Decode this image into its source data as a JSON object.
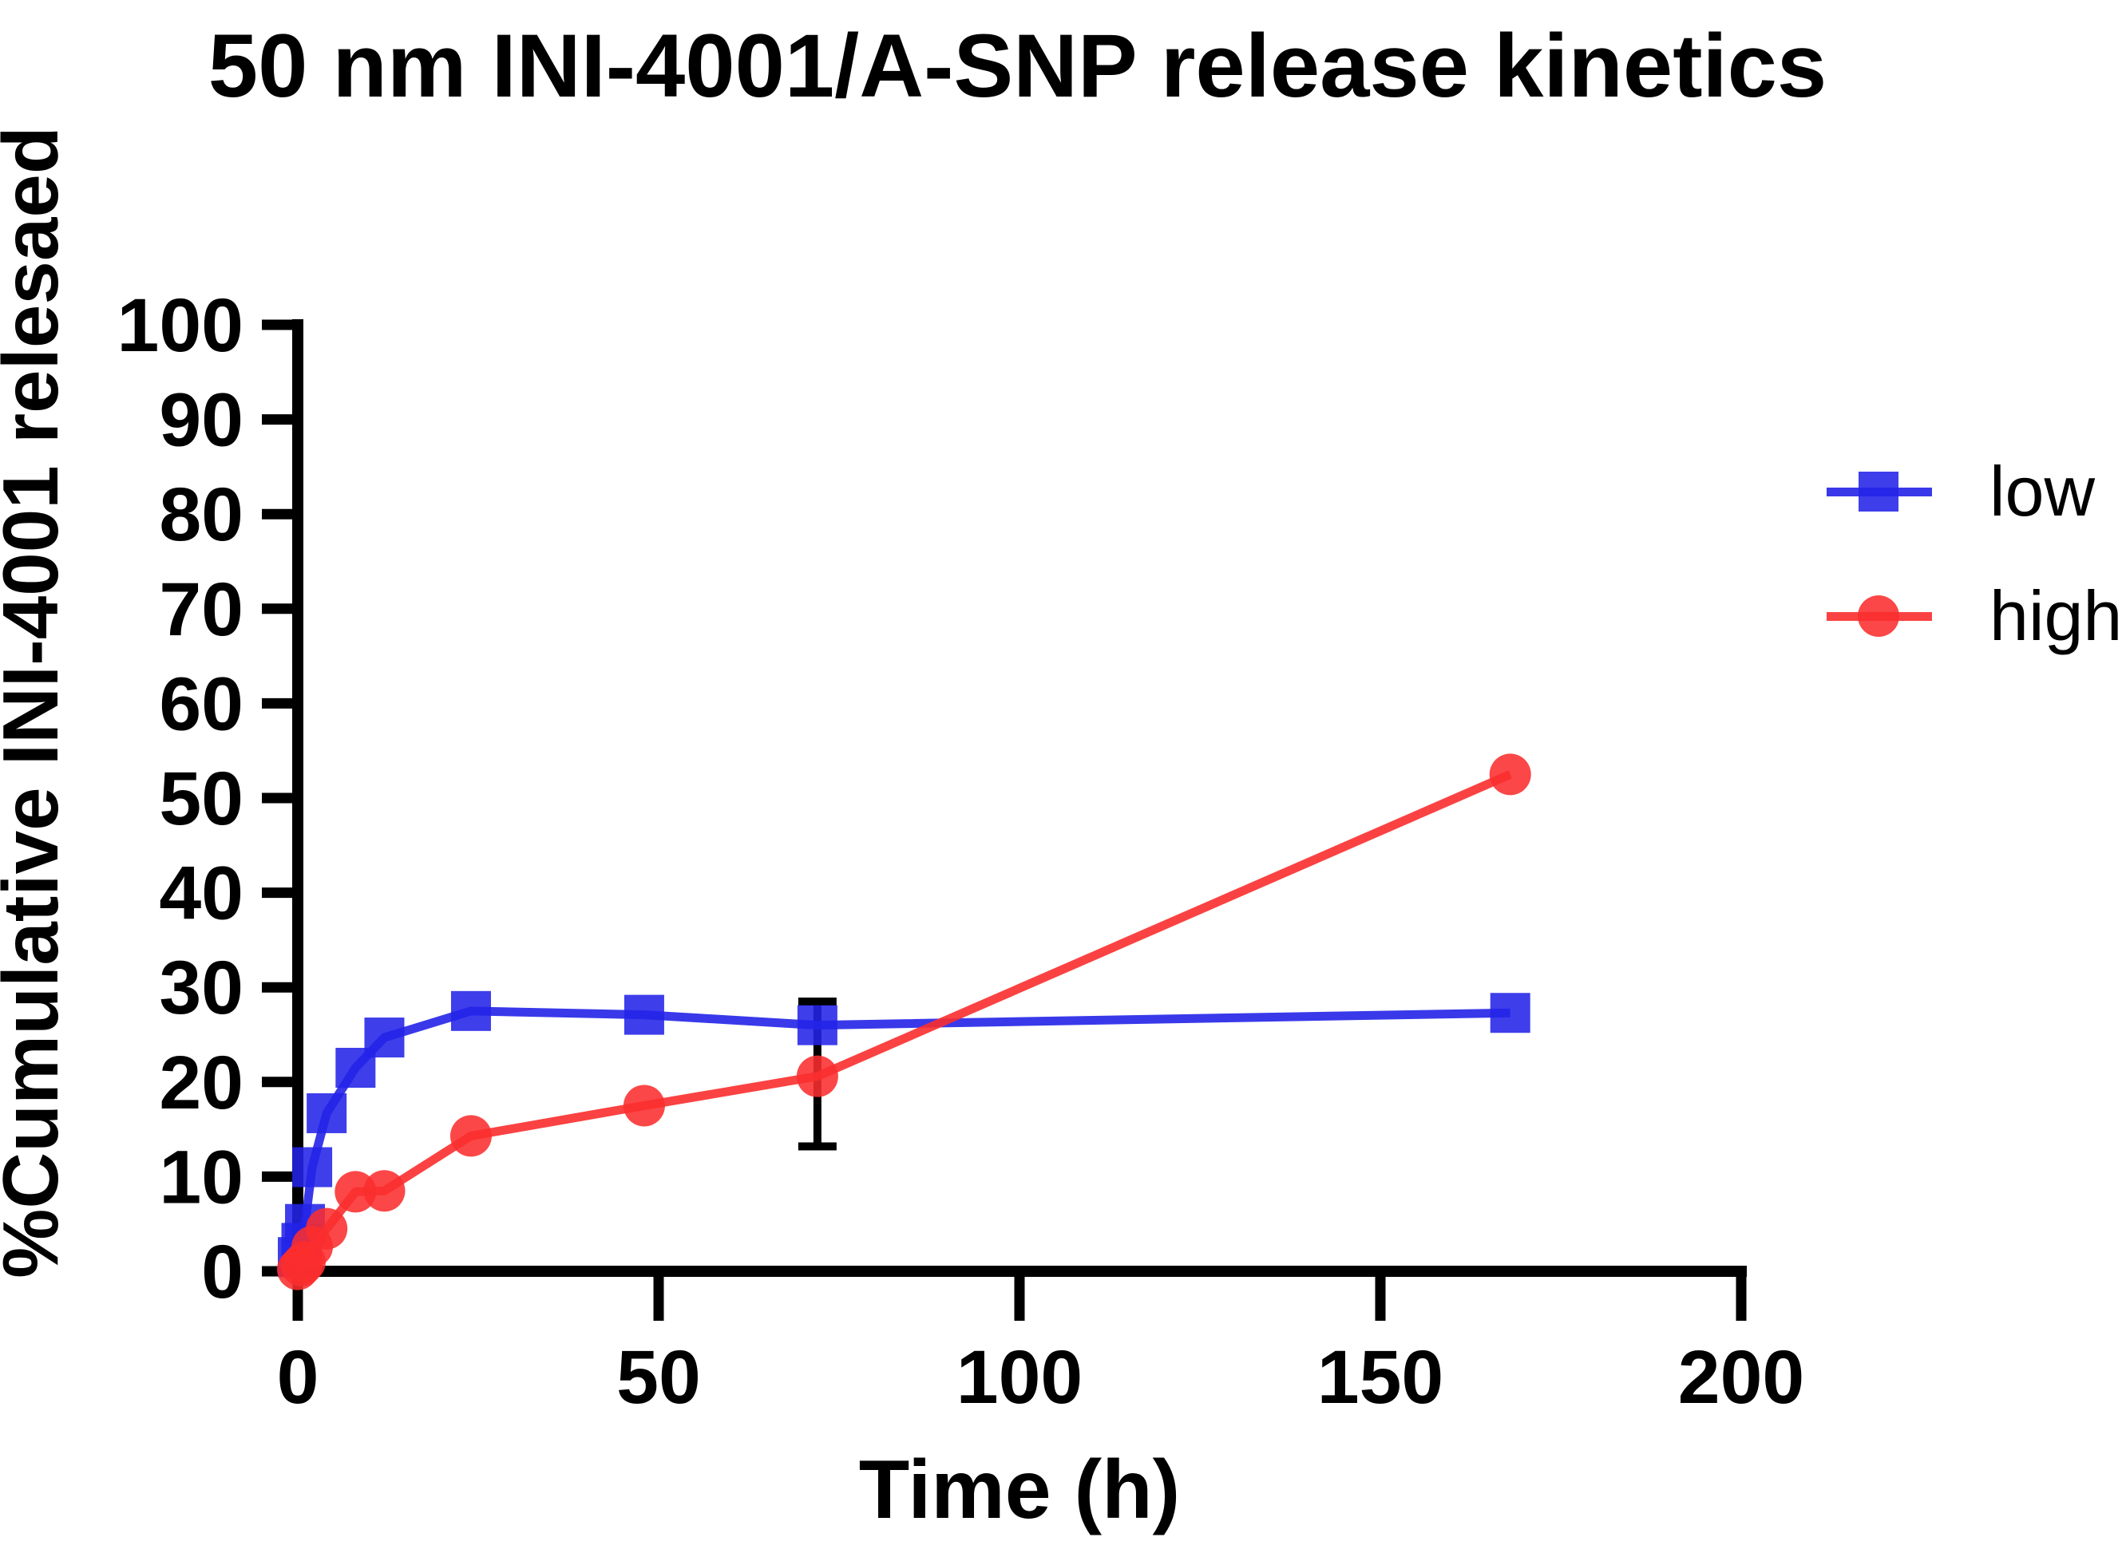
{
  "title": "50 nm INI-4001/A-SNP release kinetics",
  "x_axis": {
    "label": "Time (h)",
    "ticks": [
      0,
      50,
      100,
      150,
      200
    ],
    "range": [
      0,
      200
    ]
  },
  "y_axis": {
    "label": "%Cumulative INI-4001 relesaed",
    "ticks": [
      0,
      10,
      20,
      30,
      40,
      50,
      60,
      70,
      80,
      90,
      100
    ],
    "range": [
      0,
      100
    ]
  },
  "legend": [
    {
      "label": "low",
      "marker": "square",
      "color": "#2323e8"
    },
    {
      "label": "high",
      "marker": "circle",
      "color": "#fb2e2e"
    }
  ],
  "colors": {
    "low": "#2323e8",
    "high": "#fb2e2e",
    "error_bar": "#000000",
    "axis": "#000000"
  },
  "chart_data": {
    "type": "line",
    "title": "50 nm INI-4001/A-SNP release kinetics",
    "xlabel": "Time (h)",
    "ylabel": "%Cumulative INI-4001 relesaed",
    "xlim": [
      0,
      200
    ],
    "ylim": [
      0,
      100
    ],
    "grid": false,
    "legend_position": "right",
    "x": [
      0,
      0.5,
      1,
      2,
      4,
      8,
      12,
      24,
      48,
      72,
      168
    ],
    "series": [
      {
        "name": "low",
        "marker": "square",
        "color": "#2323e8",
        "values": [
          1.5,
          3.0,
          5.0,
          11.0,
          16.7,
          21.5,
          24.7,
          27.5,
          27.1,
          26.0,
          27.3
        ]
      },
      {
        "name": "high",
        "marker": "circle",
        "color": "#fb2e2e",
        "values": [
          0.2,
          0.6,
          1.0,
          2.6,
          4.5,
          8.4,
          8.5,
          14.3,
          17.5,
          20.6,
          52.5
        ]
      }
    ],
    "error_bars": [
      {
        "series": "high",
        "x": 72,
        "y_low": 13.2,
        "y_high": 28.5
      }
    ]
  }
}
